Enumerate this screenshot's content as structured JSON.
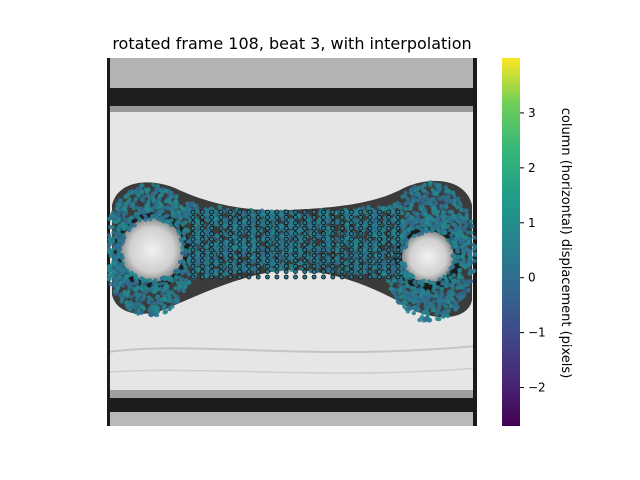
{
  "chart_data": {
    "type": "scatter",
    "title": "rotated frame 108, beat 3, with interpolation",
    "background": "grayscale microscopy image of tissue on two posts",
    "colorbar": {
      "label": "column (horizontal) displacement (pixels)",
      "colormap": "viridis",
      "range": [
        -2.7,
        4.0
      ],
      "ticks": [
        3,
        2,
        1,
        0,
        -1,
        -2
      ],
      "tick_labels": [
        "3",
        "2",
        "1",
        "0",
        "−1",
        "−2"
      ]
    },
    "scatter": {
      "description": "dense tracked points coloured by horizontal displacement, mostly near 0 to 0.3 px",
      "typical_value": 0.1,
      "interpolation_grid": {
        "cols": 23,
        "rows": 13,
        "typical_value": 0.1
      }
    },
    "colors": {
      "point": "#2a788e",
      "point_alt": "#23898e",
      "grid_edge": "#0d0d0d"
    }
  }
}
